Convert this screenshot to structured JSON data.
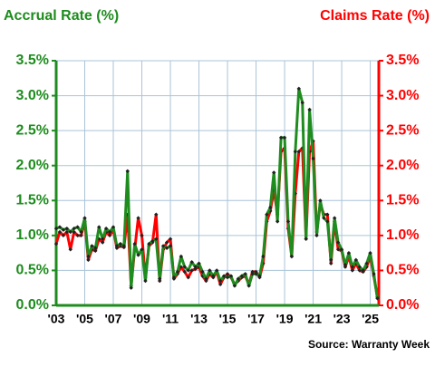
{
  "chart_data": {
    "type": "line",
    "title_left": "Accrual Rate (%)",
    "title_right": "Claims Rate (%)",
    "source": "Source: Warranty Week",
    "x": [
      2003,
      2003.25,
      2003.5,
      2003.75,
      2004,
      2004.25,
      2004.5,
      2004.75,
      2005,
      2005.25,
      2005.5,
      2005.75,
      2006,
      2006.25,
      2006.5,
      2006.75,
      2007,
      2007.25,
      2007.5,
      2007.75,
      2008,
      2008.25,
      2008.5,
      2008.75,
      2009,
      2009.25,
      2009.5,
      2009.75,
      2010,
      2010.25,
      2010.5,
      2010.75,
      2011,
      2011.25,
      2011.5,
      2011.75,
      2012,
      2012.25,
      2012.5,
      2012.75,
      2013,
      2013.25,
      2013.5,
      2013.75,
      2014,
      2014.25,
      2014.5,
      2014.75,
      2015,
      2015.25,
      2015.5,
      2015.75,
      2016,
      2016.25,
      2016.5,
      2016.75,
      2017,
      2017.25,
      2017.5,
      2017.75,
      2018,
      2018.25,
      2018.5,
      2018.75,
      2019,
      2019.25,
      2019.5,
      2019.75,
      2020,
      2020.25,
      2020.5,
      2020.75,
      2021,
      2021.25,
      2021.5,
      2021.75,
      2022,
      2022.25,
      2022.5,
      2022.75,
      2023,
      2023.25,
      2023.5,
      2023.75,
      2024,
      2024.25,
      2024.5,
      2024.75,
      2025,
      2025.25,
      2025.5
    ],
    "series": [
      {
        "name": "Claims Rate",
        "color": "#ff0000",
        "axis": "y2",
        "values": [
          0.88,
          1.05,
          1.0,
          1.05,
          0.8,
          1.05,
          1.0,
          1.0,
          1.2,
          0.65,
          0.8,
          0.78,
          0.95,
          0.9,
          1.05,
          1.0,
          1.08,
          0.82,
          0.85,
          0.83,
          1.3,
          0.28,
          0.8,
          1.25,
          1.0,
          0.4,
          0.85,
          0.9,
          1.3,
          0.35,
          0.8,
          0.9,
          0.95,
          0.38,
          0.45,
          0.55,
          0.48,
          0.4,
          0.5,
          0.52,
          0.55,
          0.42,
          0.35,
          0.45,
          0.4,
          0.48,
          0.3,
          0.4,
          0.45,
          0.4,
          0.3,
          0.35,
          0.4,
          0.42,
          0.3,
          0.48,
          0.48,
          0.4,
          0.6,
          1.2,
          1.35,
          1.65,
          1.3,
          2.2,
          2.25,
          1.1,
          0.7,
          1.6,
          2.2,
          2.25,
          0.95,
          2.2,
          2.35,
          1.05,
          1.45,
          1.3,
          1.3,
          0.6,
          1.2,
          0.8,
          0.78,
          0.55,
          0.7,
          0.5,
          0.6,
          0.5,
          0.48,
          0.55,
          0.7,
          0.42,
          0.12
        ]
      },
      {
        "name": "Accrual Rate",
        "color": "#1e8c1e",
        "values": [
          1.1,
          1.12,
          1.08,
          1.1,
          1.05,
          1.1,
          1.12,
          1.05,
          1.25,
          0.7,
          0.85,
          0.82,
          1.12,
          0.95,
          1.1,
          1.05,
          1.12,
          0.85,
          0.88,
          0.85,
          1.92,
          0.25,
          0.88,
          0.72,
          0.8,
          0.35,
          0.88,
          0.92,
          0.95,
          0.38,
          0.85,
          0.82,
          0.85,
          0.4,
          0.48,
          0.7,
          0.55,
          0.5,
          0.62,
          0.55,
          0.6,
          0.48,
          0.38,
          0.5,
          0.42,
          0.5,
          0.35,
          0.42,
          0.4,
          0.42,
          0.28,
          0.38,
          0.42,
          0.45,
          0.28,
          0.45,
          0.45,
          0.42,
          0.7,
          1.3,
          1.4,
          1.9,
          1.2,
          2.4,
          2.4,
          1.2,
          0.7,
          2.2,
          3.1,
          2.9,
          0.95,
          2.8,
          2.1,
          1.0,
          1.5,
          1.25,
          1.2,
          0.65,
          1.25,
          0.9,
          0.8,
          0.58,
          0.75,
          0.55,
          0.65,
          0.55,
          0.5,
          0.6,
          0.75,
          0.45,
          0.1
        ]
      }
    ],
    "xlim": [
      2003,
      2025.6
    ],
    "xticks": [
      {
        "value": 2003,
        "label": "'03"
      },
      {
        "value": 2005,
        "label": "'05"
      },
      {
        "value": 2007,
        "label": "'07"
      },
      {
        "value": 2009,
        "label": "'09"
      },
      {
        "value": 2011,
        "label": "'11"
      },
      {
        "value": 2013,
        "label": "'13"
      },
      {
        "value": 2015,
        "label": "'15"
      },
      {
        "value": 2017,
        "label": "'17"
      },
      {
        "value": 2019,
        "label": "'19"
      },
      {
        "value": 2021,
        "label": "'21"
      },
      {
        "value": 2023,
        "label": "'23"
      },
      {
        "value": 2025,
        "label": "'25"
      }
    ],
    "ylim": [
      0,
      3.5
    ],
    "yticks": [
      {
        "value": 0,
        "label": "0.0%"
      },
      {
        "value": 0.5,
        "label": "0.5%"
      },
      {
        "value": 1,
        "label": "1.0%"
      },
      {
        "value": 1.5,
        "label": "1.5%"
      },
      {
        "value": 2,
        "label": "2.0%"
      },
      {
        "value": 2.5,
        "label": "2.5%"
      },
      {
        "value": 3,
        "label": "3.0%"
      },
      {
        "value": 3.5,
        "label": "3.5%"
      }
    ],
    "y2lim": [
      0,
      3.5
    ],
    "y2ticks": [
      {
        "value": 0,
        "label": "0.0%"
      },
      {
        "value": 0.5,
        "label": "0.5%"
      },
      {
        "value": 1,
        "label": "1.0%"
      },
      {
        "value": 1.5,
        "label": "1.5%"
      },
      {
        "value": 2,
        "label": "2.0%"
      },
      {
        "value": 2.5,
        "label": "2.5%"
      },
      {
        "value": 3,
        "label": "3.0%"
      },
      {
        "value": 3.5,
        "label": "3.5%"
      }
    ],
    "grid": true
  }
}
